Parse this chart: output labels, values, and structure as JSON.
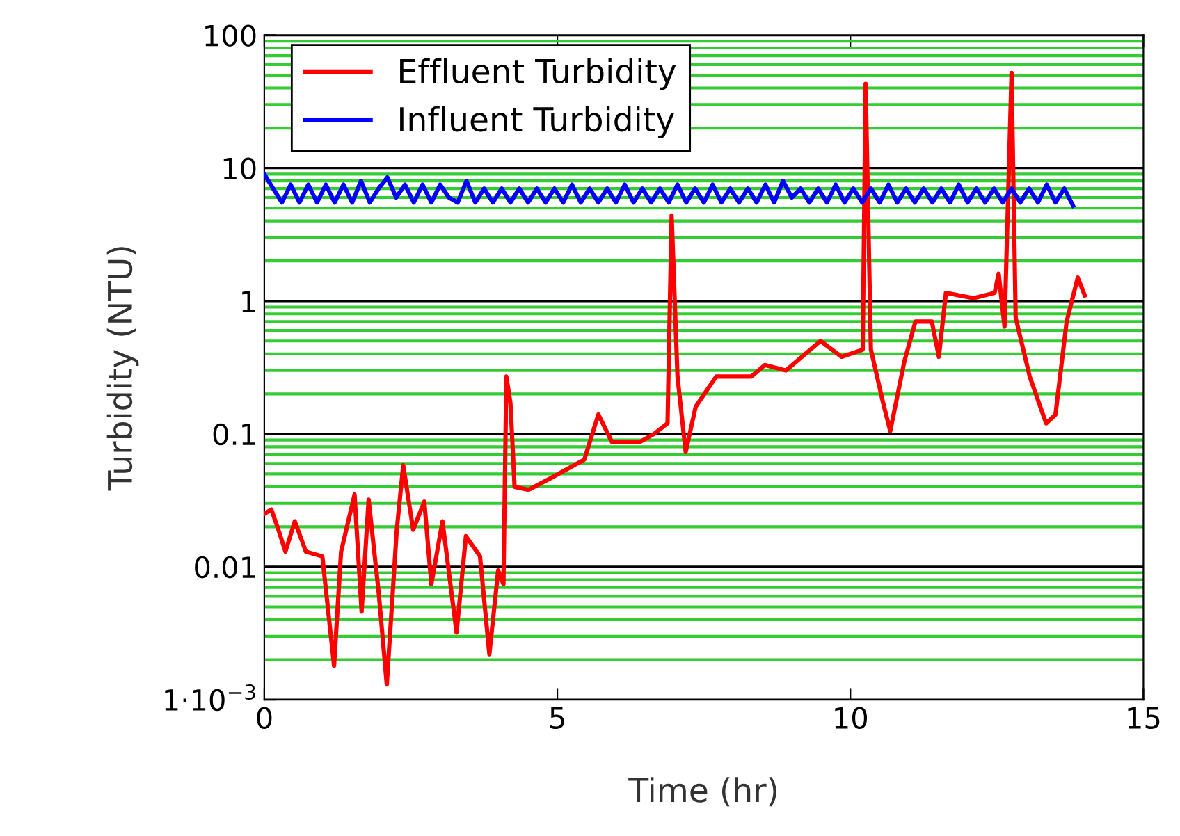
{
  "chart_data": {
    "type": "line",
    "xlabel": "Time (hr)",
    "ylabel": "Turbidity (NTU)",
    "log": "y",
    "xlim": [
      0,
      15
    ],
    "xticks": [
      0,
      5,
      10,
      15
    ],
    "ylim": [
      0.001,
      100
    ],
    "yticks": [
      {
        "value": 0.001,
        "label": "1·10$^{−3}$"
      },
      {
        "value": 0.002,
        "label": null
      },
      {
        "value": 0.003,
        "label": null
      },
      {
        "value": 0.004,
        "label": null
      },
      {
        "value": 0.005,
        "label": null
      },
      {
        "value": 0.006,
        "label": null
      },
      {
        "value": 0.007,
        "label": null
      },
      {
        "value": 0.008,
        "label": null
      },
      {
        "value": 0.009,
        "label": null
      },
      0.01,
      {
        "value": 0.02,
        "label": null
      },
      {
        "value": 0.03,
        "label": null
      },
      {
        "value": 0.04,
        "label": null
      },
      {
        "value": 0.05,
        "label": null
      },
      {
        "value": 0.06,
        "label": null
      },
      {
        "value": 0.07,
        "label": null
      },
      {
        "value": 0.08,
        "label": null
      },
      {
        "value": 0.09,
        "label": null
      },
      0.1,
      {
        "value": 0.2,
        "label": null
      },
      {
        "value": 0.3,
        "label": null
      },
      {
        "value": 0.4,
        "label": null
      },
      {
        "value": 0.5,
        "label": null
      },
      {
        "value": 0.6,
        "label": null
      },
      {
        "value": 0.7,
        "label": null
      },
      {
        "value": 0.8,
        "label": null
      },
      {
        "value": 0.9,
        "label": null
      },
      1,
      {
        "value": 2,
        "label": null
      },
      {
        "value": 3,
        "label": null
      },
      {
        "value": 4,
        "label": null
      },
      {
        "value": 5,
        "label": null
      },
      {
        "value": 6,
        "label": null
      },
      {
        "value": 7,
        "label": null
      },
      {
        "value": 8,
        "label": null
      },
      {
        "value": 9,
        "label": null
      },
      10,
      {
        "value": 20,
        "label": null
      },
      {
        "value": 30,
        "label": null
      },
      {
        "value": 40,
        "label": null
      },
      {
        "value": 50,
        "label": null
      },
      {
        "value": 60,
        "label": null
      },
      {
        "value": 70,
        "label": null
      },
      {
        "value": 80,
        "label": null
      },
      {
        "value": 90,
        "label": null
      },
      100
    ],
    "grid": "y",
    "legend": "top left",
    "line_style": "solid",
    "marker": "none",
    "series": [
      {
        "name": "Effluent Turbidity",
        "color": "#ff0000",
        "x": [
          0,
          0.12,
          0.24,
          0.36,
          0.52,
          0.71,
          0.99,
          1.19,
          1.31,
          1.54,
          1.66,
          1.78,
          1.95,
          2.09,
          2.26,
          2.37,
          2.54,
          2.73,
          2.85,
          3.04,
          3.28,
          3.44,
          3.68,
          3.84,
          3.99,
          4.08,
          4.13,
          4.2,
          4.27,
          4.51,
          4.87,
          5.46,
          5.7,
          5.93,
          6.41,
          6.65,
          6.88,
          6.95,
          7.05,
          7.19,
          7.36,
          7.71,
          8.31,
          8.54,
          8.9,
          9.49,
          9.85,
          10.21,
          10.26,
          10.35,
          10.56,
          10.68,
          10.92,
          11.11,
          11.39,
          11.51,
          11.63,
          12.1,
          12.46,
          12.53,
          12.63,
          12.75,
          12.82,
          13.06,
          13.34,
          13.5,
          13.69,
          13.88,
          14.0
        ],
        "values": [
          0.025,
          0.027,
          0.019,
          0.013,
          0.022,
          0.013,
          0.012,
          0.0018,
          0.013,
          0.035,
          0.0046,
          0.032,
          0.0065,
          0.0013,
          0.019,
          0.058,
          0.019,
          0.031,
          0.0074,
          0.022,
          0.0032,
          0.017,
          0.012,
          0.0022,
          0.0094,
          0.0074,
          0.27,
          0.17,
          0.04,
          0.038,
          0.046,
          0.064,
          0.14,
          0.087,
          0.087,
          0.1,
          0.12,
          4.4,
          0.27,
          0.073,
          0.16,
          0.27,
          0.27,
          0.33,
          0.3,
          0.5,
          0.38,
          0.43,
          43,
          0.43,
          0.17,
          0.105,
          0.35,
          0.7,
          0.7,
          0.38,
          1.15,
          1.05,
          1.15,
          1.6,
          0.64,
          52,
          0.75,
          0.27,
          0.12,
          0.14,
          0.7,
          1.5,
          1.1
        ]
      },
      {
        "name": "Influent Turbidity",
        "color": "#0000ff",
        "x": [
          0,
          0.15,
          0.3,
          0.45,
          0.6,
          0.75,
          0.9,
          1.05,
          1.2,
          1.35,
          1.5,
          1.65,
          1.8,
          1.95,
          2.1,
          2.25,
          2.4,
          2.55,
          2.7,
          2.85,
          3.0,
          3.15,
          3.3,
          3.45,
          3.6,
          3.75,
          3.9,
          4.05,
          4.2,
          4.35,
          4.5,
          4.65,
          4.8,
          4.95,
          5.1,
          5.25,
          5.4,
          5.55,
          5.7,
          5.85,
          6.0,
          6.15,
          6.3,
          6.45,
          6.6,
          6.75,
          6.9,
          7.05,
          7.2,
          7.35,
          7.5,
          7.65,
          7.8,
          7.95,
          8.1,
          8.25,
          8.4,
          8.55,
          8.7,
          8.85,
          9.0,
          9.15,
          9.3,
          9.45,
          9.6,
          9.75,
          9.9,
          10.05,
          10.2,
          10.35,
          10.5,
          10.65,
          10.8,
          10.95,
          11.1,
          11.25,
          11.4,
          11.55,
          11.7,
          11.85,
          12.0,
          12.15,
          12.3,
          12.45,
          12.6,
          12.75,
          12.9,
          13.05,
          13.2,
          13.35,
          13.5,
          13.65,
          13.8
        ],
        "values": [
          9,
          7,
          5.5,
          7.5,
          5.5,
          7.5,
          5.5,
          7.5,
          5.5,
          7.5,
          5.5,
          8,
          5.5,
          7,
          8.5,
          6,
          7.5,
          5.5,
          7.5,
          5.5,
          7.5,
          6,
          5.5,
          8,
          5.5,
          7,
          5.5,
          7,
          5.5,
          7,
          5.5,
          7,
          5.5,
          7,
          5.5,
          7.5,
          5.5,
          7,
          5.5,
          7,
          5.5,
          7.5,
          5.5,
          7,
          5.5,
          7,
          5.5,
          7.5,
          5.5,
          7,
          5.5,
          7.5,
          5.5,
          7,
          5.5,
          7,
          5.5,
          7.5,
          5.5,
          8,
          6,
          7,
          5.5,
          7,
          5.5,
          7.5,
          5.5,
          7,
          5.5,
          7,
          5.5,
          7.5,
          5.5,
          7,
          5.5,
          7,
          5.5,
          7,
          5.5,
          7.5,
          5.5,
          7,
          5.5,
          7,
          5.5,
          7,
          5.5,
          7,
          5.5,
          7.5,
          5.5,
          7,
          5.2
        ]
      }
    ]
  }
}
